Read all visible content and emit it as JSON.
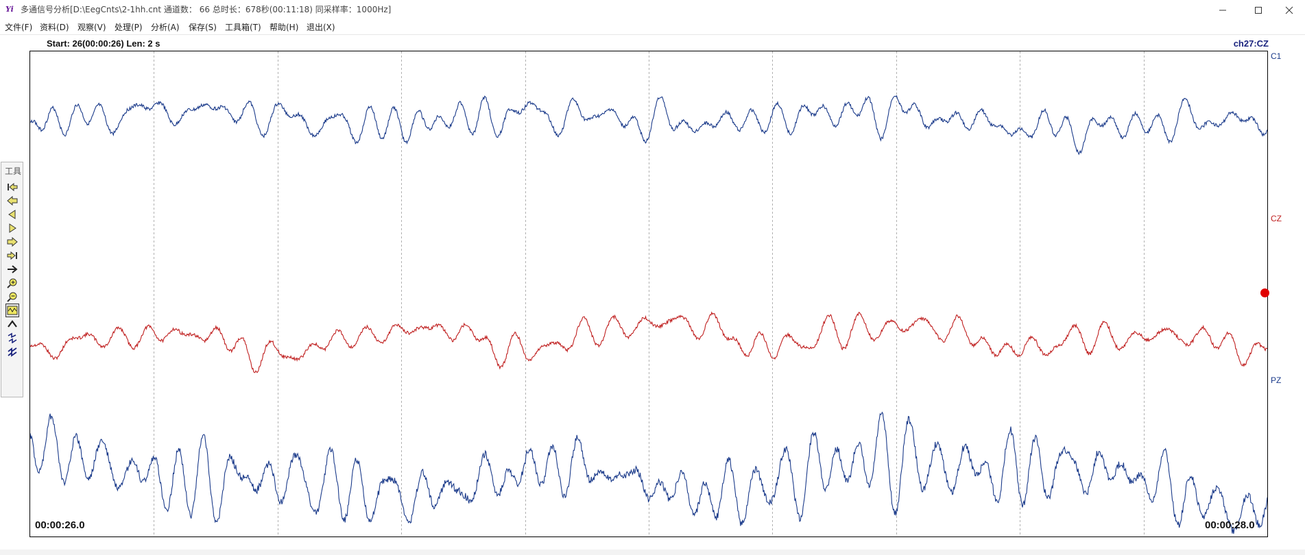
{
  "window": {
    "title": "多通信号分析[D:\\EegCnts\\2-1hh.cnt 通道数： 66  总时长：678秒(00:11:18)  同采样率：1000Hz]",
    "icon": "yi-app-icon",
    "controls": [
      "minimize-icon",
      "maximize-icon",
      "close-icon"
    ]
  },
  "menu": [
    {
      "label": "文件(F)"
    },
    {
      "label": "资料(D)"
    },
    {
      "label": "观察(V)"
    },
    {
      "label": "处理(P)"
    },
    {
      "label": "分析(A)"
    },
    {
      "label": "保存(S)"
    },
    {
      "label": "工具箱(T)"
    },
    {
      "label": "帮助(H)"
    },
    {
      "label": "退出(X)"
    }
  ],
  "view": {
    "info": "Start: 26(00:00:26)  Len: 2 s",
    "current_channel": "ch27:CZ",
    "time_start": "00:00:26.0",
    "time_end": "00:00:28.0",
    "duration_s": 2,
    "start_s": 26,
    "grid_divisions": 10
  },
  "channels": [
    {
      "name": "C1",
      "color": "#1a3a8a",
      "baseline": 0.14,
      "amplitude": 0.045,
      "seed": 3
    },
    {
      "name": "CZ",
      "color": "#c02020",
      "baseline": 0.59,
      "amplitude": 0.045,
      "seed": 11
    },
    {
      "name": "PZ",
      "color": "#1a3a8a",
      "baseline": 0.88,
      "amplitude": 0.085,
      "seed": 23
    }
  ],
  "selected_channel_marker": {
    "channel": "CZ",
    "color": "#e00000"
  },
  "toolbar": {
    "label": "工具",
    "tools": [
      {
        "name": "first-page-icon"
      },
      {
        "name": "prev-page-icon"
      },
      {
        "name": "step-back-icon"
      },
      {
        "name": "step-forward-icon"
      },
      {
        "name": "next-page-icon"
      },
      {
        "name": "last-page-icon"
      },
      {
        "name": "go-to-icon"
      },
      {
        "name": "zoom-in-icon"
      },
      {
        "name": "zoom-out-icon"
      },
      {
        "name": "wave-mode-icon",
        "active": true
      },
      {
        "name": "amplitude-up-icon"
      },
      {
        "name": "channel-scroll-icon"
      },
      {
        "name": "channel-select-icon"
      }
    ]
  }
}
